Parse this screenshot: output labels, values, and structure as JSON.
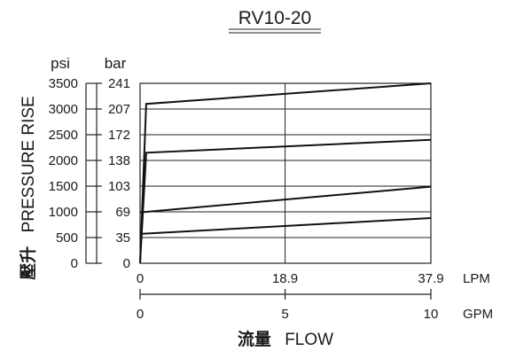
{
  "chart_data": {
    "type": "line",
    "title": "RV10-20",
    "ylabel_cjk": "壓升",
    "ylabel": "PRESSURE RISE",
    "xlabel_cjk": "流量",
    "xlabel": "FLOW",
    "y_units": {
      "psi": "psi",
      "bar": "bar"
    },
    "x_units": {
      "lpm": "LPM",
      "gpm": "GPM"
    },
    "xlim": [
      0,
      37.9
    ],
    "ylim": [
      0,
      3500
    ],
    "psi_ticks": [
      "3500",
      "3000",
      "2500",
      "2000",
      "1500",
      "1000",
      "500",
      "0"
    ],
    "psi_tick_values": [
      3500,
      3000,
      2500,
      2000,
      1500,
      1000,
      500,
      0
    ],
    "bar_ticks": [
      "241",
      "207",
      "172",
      "138",
      "103",
      "69",
      "35",
      "0"
    ],
    "lpm_ticks": [
      "0",
      "18.9",
      "37.9"
    ],
    "lpm_tick_values": [
      0,
      18.9,
      37.9
    ],
    "gpm_ticks": [
      "0",
      "5",
      "10"
    ],
    "grid": true,
    "series": [
      {
        "x": [
          0,
          37.9
        ],
        "y": [
          570,
          880
        ]
      },
      {
        "x": [
          0,
          37.9
        ],
        "y": [
          990,
          1490
        ]
      },
      {
        "x": [
          0,
          0.8,
          37.9
        ],
        "y": [
          0,
          2150,
          2400
        ]
      },
      {
        "x": [
          0,
          0.8,
          37.9
        ],
        "y": [
          0,
          3100,
          3500
        ]
      }
    ]
  }
}
